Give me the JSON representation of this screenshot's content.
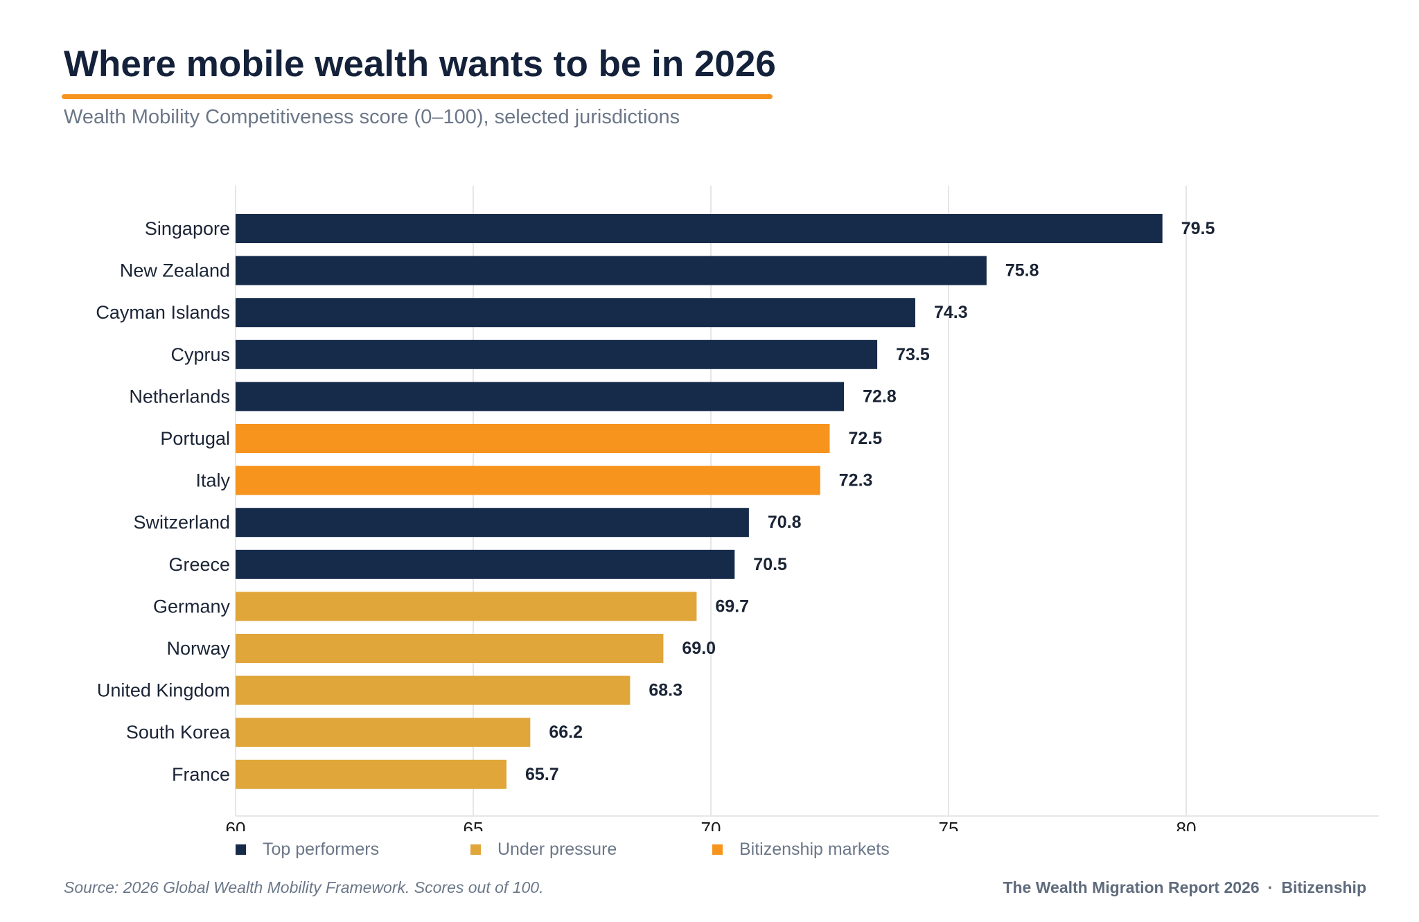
{
  "header": {
    "title": "Where mobile wealth wants to be in 2026",
    "subtitle": "Wealth Mobility Competitiveness score (0–100), selected jurisdictions"
  },
  "chart_data": {
    "type": "bar",
    "orientation": "horizontal",
    "categories": [
      "Singapore",
      "New Zealand",
      "Cayman Islands",
      "Cyprus",
      "Netherlands",
      "Portugal",
      "Italy",
      "Switzerland",
      "Greece",
      "Germany",
      "Norway",
      "United Kingdom",
      "South Korea",
      "France"
    ],
    "values": [
      79.5,
      75.8,
      74.3,
      73.5,
      72.8,
      72.5,
      72.3,
      70.8,
      70.5,
      69.7,
      69.0,
      68.3,
      66.2,
      65.7
    ],
    "value_labels": [
      "79.5",
      "75.8",
      "74.3",
      "73.5",
      "72.8",
      "72.5",
      "72.3",
      "70.8",
      "70.5",
      "69.7",
      "69.0",
      "68.3",
      "66.2",
      "65.7"
    ],
    "groups": [
      "Top performers",
      "Top performers",
      "Top performers",
      "Top performers",
      "Top performers",
      "Bitizenship markets",
      "Bitizenship markets",
      "Top performers",
      "Top performers",
      "Under pressure",
      "Under pressure",
      "Under pressure",
      "Under pressure",
      "Under pressure"
    ],
    "xlim": [
      60,
      84
    ],
    "xticks": [
      60,
      65,
      70,
      75,
      80
    ],
    "grid": "vertical",
    "legend_placement": "bottom",
    "legend": [
      {
        "name": "Top performers",
        "color": "#162a4a"
      },
      {
        "name": "Under pressure",
        "color": "#e0a63a"
      },
      {
        "name": "Bitizenship markets",
        "color": "#f7941d"
      }
    ]
  },
  "footer": {
    "source": "Source: 2026 Global Wealth Mobility Framework. Scores out of 100.",
    "report": "The Wealth Migration Report 2026",
    "separator": "·",
    "brand": "Bitizenship"
  },
  "colors": {
    "accent": "#f7941d",
    "title": "#14213a",
    "muted": "#6b7788",
    "grid": "#e6e6e6"
  }
}
